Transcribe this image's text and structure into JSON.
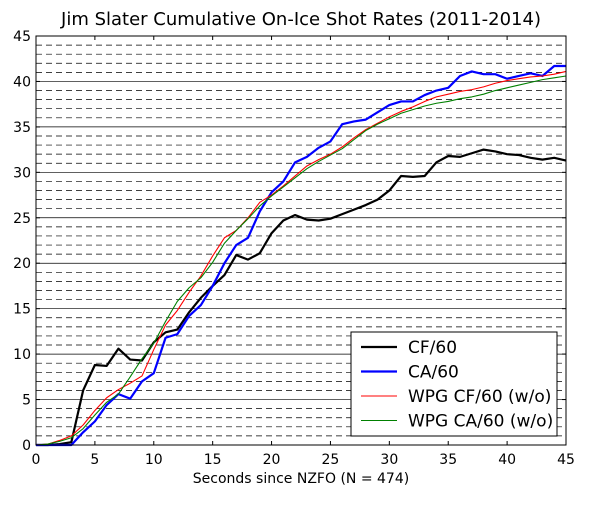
{
  "chart_data": {
    "type": "line",
    "title": "Jim Slater Cumulative On-Ice Shot Rates (2011-2014)",
    "xlabel": "Seconds since NZFO (N = 474)",
    "ylabel": "",
    "xlim": [
      0,
      45
    ],
    "ylim": [
      0,
      45
    ],
    "x_ticks": [
      0,
      5,
      10,
      15,
      20,
      25,
      30,
      35,
      40,
      45
    ],
    "y_ticks": [
      0,
      5,
      10,
      15,
      20,
      25,
      30,
      35,
      40,
      45
    ],
    "grid": {
      "major_solid_y": [
        0,
        5,
        10,
        15,
        20,
        25,
        30,
        35,
        40,
        45
      ],
      "minor_dashed_y_step": 1,
      "vertical_grid": false
    },
    "legend_position": "bottom-right",
    "x": [
      0,
      1,
      2,
      3,
      4,
      5,
      6,
      7,
      8,
      9,
      10,
      11,
      12,
      13,
      14,
      15,
      16,
      17,
      18,
      19,
      20,
      21,
      22,
      23,
      24,
      25,
      26,
      27,
      28,
      29,
      30,
      31,
      32,
      33,
      34,
      35,
      36,
      37,
      38,
      39,
      40,
      41,
      42,
      43,
      44,
      45
    ],
    "series": [
      {
        "name": "CF/60",
        "color": "#000000",
        "width": 2.2,
        "values": [
          0.0,
          0.0,
          0.1,
          0.3,
          6.0,
          8.8,
          8.7,
          10.6,
          9.4,
          9.3,
          11.3,
          12.4,
          12.7,
          14.6,
          16.2,
          17.5,
          18.7,
          20.9,
          20.4,
          21.1,
          23.3,
          24.7,
          25.3,
          24.8,
          24.7,
          24.9,
          25.4,
          25.9,
          26.4,
          27.0,
          28.0,
          29.6,
          29.5,
          29.6,
          31.1,
          31.8,
          31.7,
          32.1,
          32.5,
          32.3,
          32.0,
          31.9,
          31.6,
          31.4,
          31.6,
          31.3
        ]
      },
      {
        "name": "CA/60",
        "color": "#0000ff",
        "width": 2.2,
        "values": [
          0.0,
          0.0,
          0.0,
          0.0,
          1.4,
          2.6,
          4.4,
          5.6,
          5.1,
          7.0,
          7.9,
          11.8,
          12.2,
          14.2,
          15.4,
          17.5,
          20.0,
          22.0,
          22.8,
          25.7,
          27.8,
          29.0,
          31.1,
          31.7,
          32.7,
          33.4,
          35.3,
          35.6,
          35.8,
          36.6,
          37.4,
          37.8,
          37.8,
          38.5,
          39.0,
          39.3,
          40.6,
          41.1,
          40.8,
          40.8,
          40.3,
          40.6,
          40.9,
          40.6,
          41.7,
          41.7
        ]
      },
      {
        "name": "WPG CF/60 (w/o)",
        "color": "#ff0000",
        "width": 1.1,
        "values": [
          0.0,
          0.1,
          0.5,
          1.0,
          2.2,
          3.8,
          5.2,
          6.1,
          6.8,
          7.6,
          10.5,
          13.2,
          14.8,
          16.8,
          18.6,
          20.8,
          22.8,
          23.6,
          25.0,
          26.7,
          27.5,
          28.5,
          29.6,
          30.7,
          31.4,
          32.0,
          32.8,
          33.8,
          34.7,
          35.4,
          36.1,
          36.7,
          37.2,
          37.8,
          38.3,
          38.6,
          38.9,
          39.1,
          39.4,
          39.8,
          40.1,
          40.3,
          40.5,
          40.6,
          40.8,
          41.1
        ]
      },
      {
        "name": "WPG CA/60 (w/o)",
        "color": "#008000",
        "width": 1.1,
        "values": [
          0.0,
          0.1,
          0.4,
          0.8,
          1.8,
          3.3,
          4.7,
          5.6,
          7.5,
          9.5,
          11.2,
          13.6,
          15.8,
          17.3,
          18.4,
          20.1,
          22.2,
          23.6,
          24.9,
          26.3,
          27.4,
          28.4,
          29.4,
          30.4,
          31.2,
          31.9,
          32.6,
          33.6,
          34.6,
          35.3,
          35.9,
          36.5,
          36.9,
          37.3,
          37.6,
          37.8,
          38.1,
          38.3,
          38.6,
          39.0,
          39.3,
          39.6,
          39.9,
          40.2,
          40.4,
          40.6
        ]
      }
    ]
  }
}
